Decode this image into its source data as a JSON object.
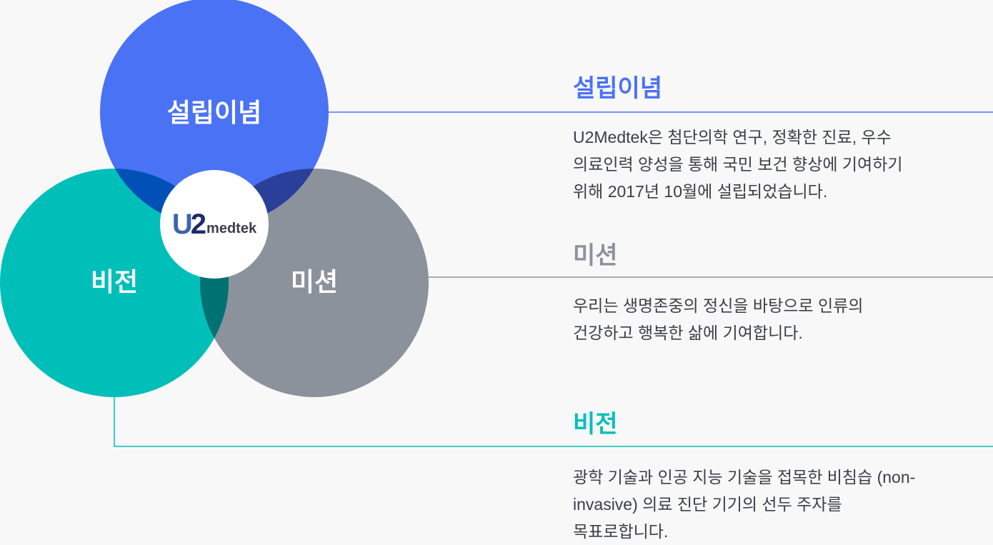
{
  "colors": {
    "founding": "#4a72f5",
    "mission": "#8b929c",
    "vision": "#00bfb9"
  },
  "diagram": {
    "founding_label": "설립이념",
    "vision_label": "비전",
    "mission_label": "미션",
    "logo": "U2medtek"
  },
  "sections": [
    {
      "title": "설립이념",
      "body": "U2Medtek은 첨단의학 연구, 정확한 진료, 우수\n의료인력 양성을 통해 국민 보건 향상에 기여하기\n위해 2017년 10월에 설립되었습니다."
    },
    {
      "title": "미션",
      "body": "우리는 생명존중의 정신을 바탕으로 인류의\n건강하고 행복한 삶에 기여합니다."
    },
    {
      "title": "비전",
      "body": "광학 기술과 인공 지능 기술을 접목한 비침습 (non-\ninvasive) 의료 진단 기기의 선두 주자를\n목표로합니다."
    }
  ]
}
